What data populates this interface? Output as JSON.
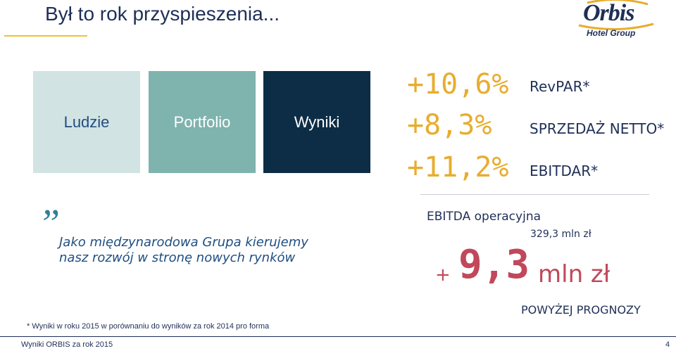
{
  "slide": {
    "title": "Był to rok przyspieszenia...",
    "logo": {
      "word": "Orbis",
      "sub": "Hotel Group",
      "icon": "orbis-logo"
    },
    "tiles": [
      {
        "label": "Ludzie",
        "color": "#d2e3e3"
      },
      {
        "label": "Portfolio",
        "color": "#7fb3ae"
      },
      {
        "label": "Wyniki",
        "color": "#0c2d45"
      }
    ],
    "metrics": [
      {
        "value": "+10,6%",
        "label": "RevPAR*"
      },
      {
        "value": "+8,3%",
        "label": "SPRZEDAŻ NETTO*"
      },
      {
        "value": "+11,2%",
        "label": "EBITDAR*"
      }
    ],
    "quote_mark": "”",
    "quote": "Jako międzynarodowa Grupa kierujemy nasz rozwój w stronę nowych rynków",
    "ebitda": {
      "title": "EBITDA operacyjna",
      "base": "329,3 mln zł",
      "plus": "+",
      "number": "9,3",
      "unit": "mln zł",
      "note": "POWYŻEJ PROGNOZY"
    },
    "footnote": "* Wyniki w roku 2015 w porównaniu do wyników za rok 2014 pro forma",
    "footer": {
      "left": "Wyniki ORBIS za rok 2015",
      "page": "4"
    },
    "colors": {
      "accent": "#e8ad2f",
      "highlight": "#c0485a",
      "navy": "#1f2f57"
    }
  }
}
